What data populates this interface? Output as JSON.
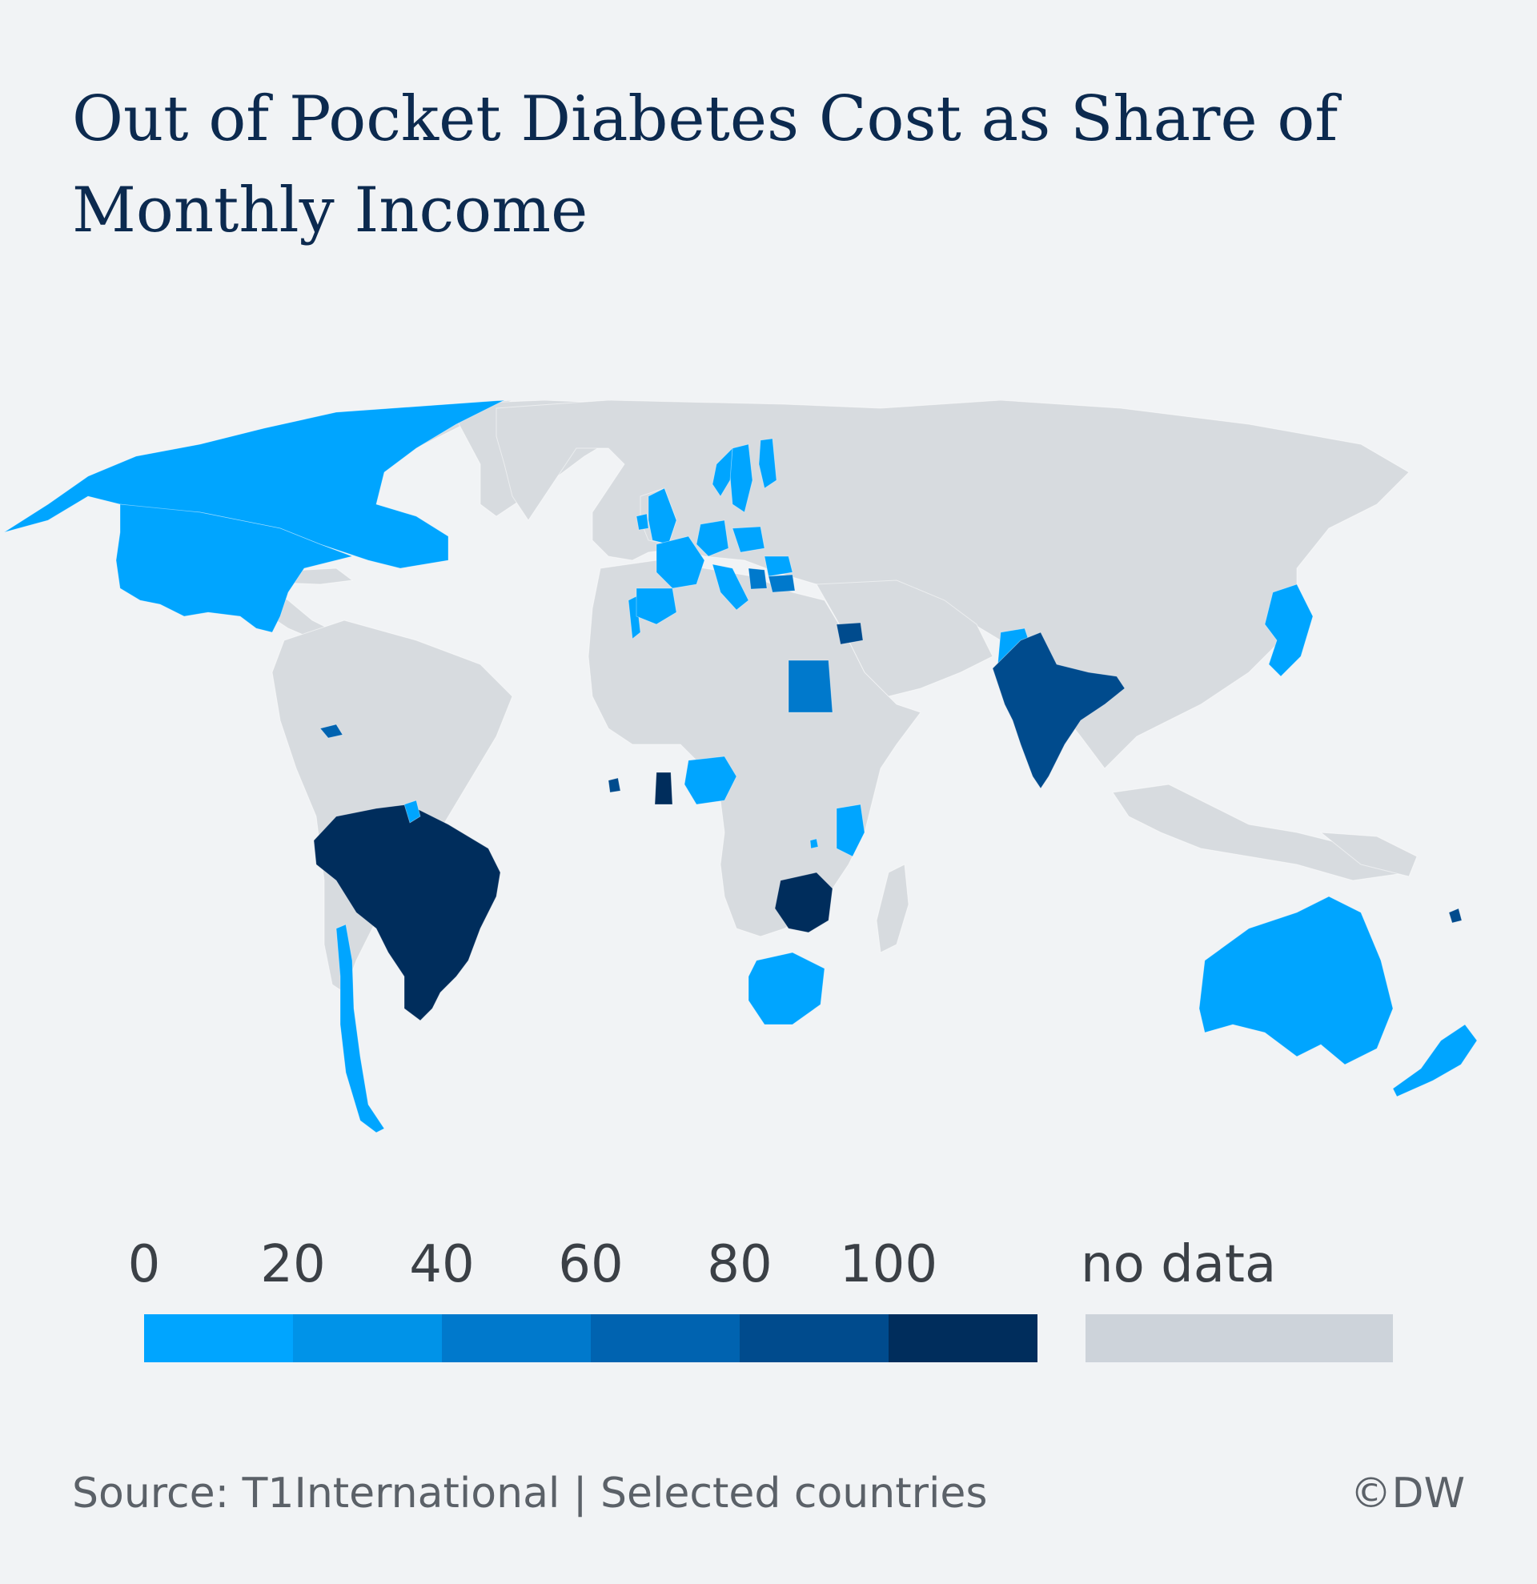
{
  "title": "Out of Pocket Diabetes Cost as Share of Monthly Income",
  "legend": {
    "ticks": [
      "0",
      "20",
      "40",
      "60",
      "80",
      "100"
    ],
    "bins": [
      {
        "range": [
          0,
          20
        ],
        "color": "#00a5ff"
      },
      {
        "range": [
          20,
          40
        ],
        "color": "#0093e8"
      },
      {
        "range": [
          40,
          60
        ],
        "color": "#0079cc"
      },
      {
        "range": [
          60,
          80
        ],
        "color": "#0063b0"
      },
      {
        "range": [
          80,
          100
        ],
        "color": "#004b8d"
      },
      {
        "range": [
          100,
          null
        ],
        "color": "#002d5c"
      }
    ],
    "no_data_label": "no data",
    "no_data_color": "#cdd3da"
  },
  "map": {
    "projection": "world",
    "land_color": "#d7dbdf",
    "regions": [
      {
        "name": "Canada",
        "bin": 0
      },
      {
        "name": "United States",
        "bin": 0
      },
      {
        "name": "Brazil",
        "bin": 5
      },
      {
        "name": "Chile",
        "bin": 0
      },
      {
        "name": "Dominican Republic",
        "bin": 3
      },
      {
        "name": "Guyana",
        "bin": 0
      },
      {
        "name": "Portugal",
        "bin": 0
      },
      {
        "name": "United Kingdom",
        "bin": 0
      },
      {
        "name": "Ireland",
        "bin": 0
      },
      {
        "name": "France",
        "bin": 0
      },
      {
        "name": "Spain",
        "bin": 0
      },
      {
        "name": "Germany",
        "bin": 0
      },
      {
        "name": "Italy",
        "bin": 0
      },
      {
        "name": "Sweden",
        "bin": 0
      },
      {
        "name": "Finland",
        "bin": 0
      },
      {
        "name": "Norway",
        "bin": 0
      },
      {
        "name": "Poland",
        "bin": 0
      },
      {
        "name": "Romania",
        "bin": 0
      },
      {
        "name": "Bulgaria",
        "bin": 2
      },
      {
        "name": "Serbia",
        "bin": 2
      },
      {
        "name": "Syria",
        "bin": 4
      },
      {
        "name": "Egypt",
        "bin": 2
      },
      {
        "name": "Pakistan",
        "bin": 0
      },
      {
        "name": "India",
        "bin": 4
      },
      {
        "name": "Nigeria",
        "bin": 0
      },
      {
        "name": "Ghana",
        "bin": 5
      },
      {
        "name": "Ivory Coast",
        "bin": 4
      },
      {
        "name": "Kenya",
        "bin": 0
      },
      {
        "name": "Rwanda",
        "bin": 0
      },
      {
        "name": "Zambia",
        "bin": 5
      },
      {
        "name": "South Africa",
        "bin": 0
      },
      {
        "name": "Japan",
        "bin": 0
      },
      {
        "name": "Australia",
        "bin": 0
      },
      {
        "name": "New Zealand",
        "bin": 0
      },
      {
        "name": "Fiji",
        "bin": 4
      }
    ]
  },
  "footer": {
    "source": "Source: T1International | Selected countries",
    "copyright": "©DW"
  }
}
